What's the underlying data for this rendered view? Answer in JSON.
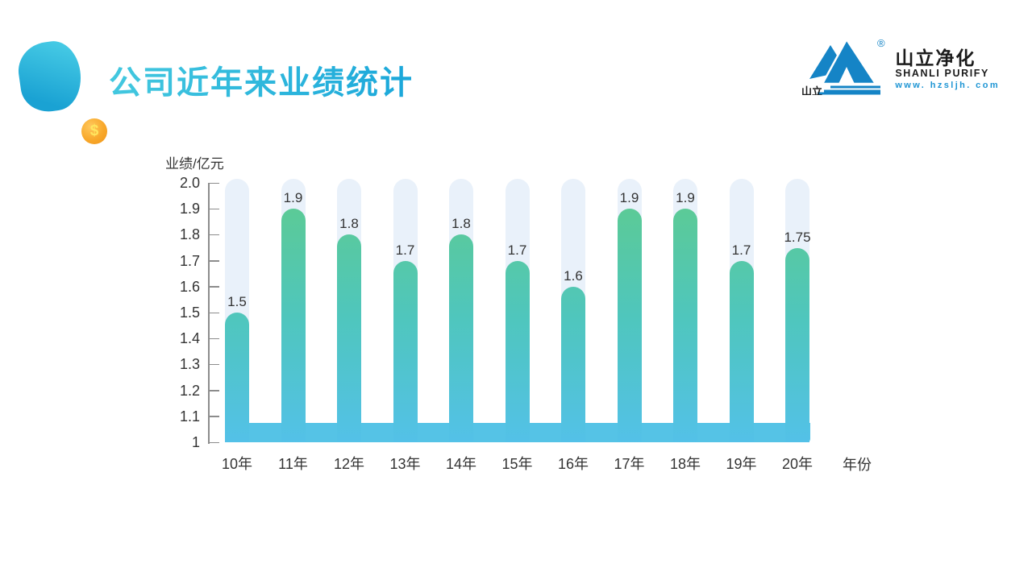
{
  "slide": {
    "title": "公司近年来业绩统计"
  },
  "decor": {
    "coin_symbol": "$"
  },
  "logo": {
    "registered_mark": "®",
    "mark_text": "山立",
    "name_cn": "山立净化",
    "name_en": "SHANLI PURIFY",
    "website": "www. hzsljh. com",
    "brand_blue": "#1584c6"
  },
  "chart_data": {
    "type": "bar",
    "title": "公司近年来业绩统计",
    "ylabel": "业绩/亿元",
    "xlabel": "年份",
    "categories": [
      "10年",
      "11年",
      "12年",
      "13年",
      "14年",
      "15年",
      "16年",
      "17年",
      "18年",
      "19年",
      "20年"
    ],
    "values": [
      1.5,
      1.9,
      1.8,
      1.7,
      1.8,
      1.7,
      1.6,
      1.9,
      1.9,
      1.7,
      1.75
    ],
    "value_labels": [
      "1.5",
      "1.9",
      "1.8",
      "1.7",
      "1.8",
      "1.7",
      "1.6",
      "1.9",
      "1.9",
      "1.7",
      "1.75"
    ],
    "y_ticks": [
      "2.0",
      "1.9",
      "1.8",
      "1.7",
      "1.6",
      "1.5",
      "1.4",
      "1.3",
      "1.2",
      "1.1",
      "1"
    ],
    "ylim": [
      1,
      2.0
    ],
    "grid": false,
    "legend": null,
    "colors": {
      "bar_top": "#5ecb8e",
      "bar_bottom": "#53c1e8",
      "track": "#e9f1fa",
      "base_band": "#55c3e6"
    }
  }
}
